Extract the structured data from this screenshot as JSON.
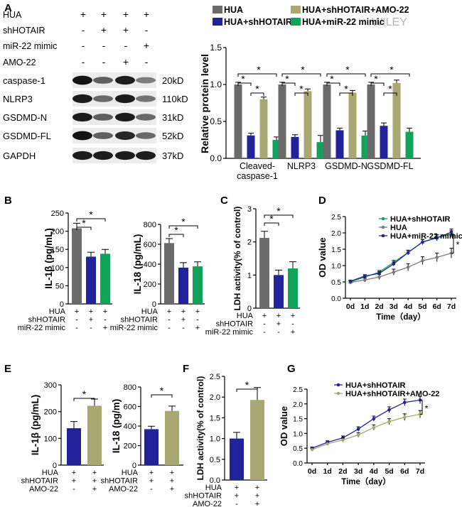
{
  "watermark": "WILEY",
  "panel_labels": [
    "A",
    "B",
    "C",
    "D",
    "E",
    "F",
    "G"
  ],
  "colors": {
    "HUA": "#6b6b6b",
    "HUA+shHOTAIR": "#22229a",
    "HUA+shHOTAIR+AMO-22": "#a9a872",
    "HUA+miR-22 mimic": "#12a35a",
    "line_HUA+shHOTAIR+AMO-22": "#a3ab66",
    "line_HUA": "#7a7a7a"
  },
  "blot": {
    "conditions": [
      {
        "label": "HUA",
        "marks": [
          "+",
          "+",
          "+",
          "+"
        ]
      },
      {
        "label": "shHOTAIR",
        "marks": [
          "-",
          "+",
          "+",
          "-"
        ]
      },
      {
        "label": "miR-22 mimic",
        "marks": [
          "-",
          "-",
          "-",
          "+"
        ]
      },
      {
        "label": "AMO-22",
        "marks": [
          "-",
          "-",
          "+",
          "-"
        ]
      }
    ],
    "bands": [
      {
        "name": "caspase-1",
        "size": "20kD",
        "intensity": [
          0.95,
          0.55,
          0.9,
          0.4
        ]
      },
      {
        "name": "NLRP3",
        "size": "110kD",
        "intensity": [
          0.9,
          0.5,
          0.9,
          0.45
        ]
      },
      {
        "name": "GSDMD-N",
        "size": "31kD",
        "intensity": [
          0.9,
          0.55,
          0.9,
          0.5
        ]
      },
      {
        "name": "GSDMD-FL",
        "size": "52kD",
        "intensity": [
          0.95,
          0.55,
          0.85,
          0.5
        ]
      },
      {
        "name": "GAPDH",
        "size": "37kD",
        "intensity": [
          0.9,
          0.9,
          0.9,
          0.9
        ]
      }
    ]
  },
  "chart_data": [
    {
      "panel": "A",
      "type": "bar",
      "ylabel": "Relative protein level",
      "xlabel": "",
      "ylim": [
        0,
        1.5
      ],
      "yticks": [
        0.0,
        0.5,
        1.0,
        1.5
      ],
      "yticklabels": [
        "0.0",
        "0.5",
        "1.0",
        "1.5"
      ],
      "categories": [
        "Cleaved-caspase-1",
        "NLRP3",
        "GSDMD-N",
        "GSDMD-FL"
      ],
      "category_lines": [
        [
          "Cleaved-",
          "caspase-1"
        ],
        [
          "NLRP3"
        ],
        [
          "GSDMD-N"
        ],
        [
          "GSDMD-FL"
        ]
      ],
      "legend": [
        "HUA",
        "HUA+shHOTAIR+AMO-22",
        "HUA+shHOTAIR",
        "HUA+miR-22 mimic"
      ],
      "legend_placement": "top",
      "series": [
        {
          "name": "HUA",
          "values": [
            1.0,
            1.0,
            1.0,
            1.0
          ],
          "errors": [
            0.03,
            0.03,
            0.03,
            0.03
          ]
        },
        {
          "name": "HUA+shHOTAIR",
          "values": [
            0.31,
            0.29,
            0.38,
            0.44
          ],
          "errors": [
            0.03,
            0.03,
            0.03,
            0.04
          ]
        },
        {
          "name": "HUA+shHOTAIR+AMO-22",
          "values": [
            0.8,
            0.91,
            0.89,
            1.02
          ],
          "errors": [
            0.03,
            0.03,
            0.03,
            0.04
          ]
        },
        {
          "name": "HUA+miR-22 mimic",
          "values": [
            0.25,
            0.22,
            0.31,
            0.36
          ],
          "errors": [
            0.04,
            0.09,
            0.06,
            0.05
          ]
        }
      ],
      "significance": "*"
    },
    {
      "panel": "B",
      "type": "bar",
      "ylabel": "IL-1β (pg/mL)",
      "ylim": [
        0,
        250
      ],
      "yticks": [
        0,
        50,
        100,
        150,
        200,
        250
      ],
      "categories": [
        "HUA",
        "HUA+shHOTAIR",
        "HUA+miR-22 mimic"
      ],
      "values": [
        208,
        130,
        138
      ],
      "errors": [
        14,
        12,
        12
      ],
      "condition_labels": [
        "HUA",
        "shHOTAIR",
        "miR-22 mimic"
      ],
      "condition_marks": [
        [
          "+",
          "+",
          "+"
        ],
        [
          "-",
          "+",
          "-"
        ],
        [
          "-",
          "-",
          "+"
        ]
      ],
      "significance": "*"
    },
    {
      "panel": "B",
      "type": "bar",
      "ylabel": "IL-18 (pg/mL)",
      "ylim": [
        0,
        800
      ],
      "yticks": [
        0,
        200,
        400,
        600,
        800
      ],
      "categories": [
        "HUA",
        "HUA+shHOTAIR",
        "HUA+miR-22 mimic"
      ],
      "values": [
        612,
        365,
        378
      ],
      "errors": [
        45,
        50,
        45
      ],
      "condition_labels": [
        "HUA",
        "shHOTAIR",
        "miR-22 mimic"
      ],
      "condition_marks": [
        [
          "+",
          "+",
          "+"
        ],
        [
          "-",
          "+",
          "-"
        ],
        [
          "-",
          "-",
          "+"
        ]
      ],
      "significance": "*"
    },
    {
      "panel": "C",
      "type": "bar",
      "ylabel": "LDH activity(% of control)",
      "ylim": [
        0,
        3
      ],
      "yticks": [
        0,
        1,
        2,
        3
      ],
      "categories": [
        "HUA",
        "HUA+shHOTAIR",
        "HUA+miR-22 mimic"
      ],
      "values": [
        2.12,
        1.0,
        1.2
      ],
      "errors": [
        0.2,
        0.15,
        0.2
      ],
      "condition_labels": [
        "HUA",
        "shHOTAIR",
        "miR-22 mimic"
      ],
      "condition_marks": [
        [
          "+",
          "+",
          "+"
        ],
        [
          "-",
          "+",
          "-"
        ],
        [
          "-",
          "-",
          "+"
        ]
      ],
      "significance": "*"
    },
    {
      "panel": "D",
      "type": "line",
      "ylabel": "OD value",
      "xlabel": "Time（day）",
      "x": [
        "0d",
        "1d",
        "2d",
        "3d",
        "4d",
        "5d",
        "6d",
        "7d"
      ],
      "ylim": [
        0,
        2.5
      ],
      "yticks": [
        0.0,
        0.5,
        1.0,
        1.5,
        2.0,
        2.5
      ],
      "yticklabels": [
        "0.0",
        "0.5",
        "1.0",
        "1.5",
        "2.0",
        "2.5"
      ],
      "legend_placement": "top-left",
      "series": [
        {
          "name": "HUA+shHOTAIR",
          "marker": "triangle",
          "values": [
            0.5,
            0.65,
            0.8,
            1.1,
            1.4,
            1.72,
            1.85,
            1.97
          ]
        },
        {
          "name": "HUA",
          "marker": "circle",
          "values": [
            0.48,
            0.56,
            0.65,
            0.8,
            0.95,
            1.15,
            1.25,
            1.38
          ]
        },
        {
          "name": "HUA+miR-22 mimic",
          "marker": "circle",
          "values": [
            0.52,
            0.68,
            0.76,
            1.05,
            1.4,
            1.72,
            1.85,
            2.02
          ]
        }
      ],
      "significance": "*"
    },
    {
      "panel": "E",
      "type": "bar",
      "ylabel": "IL-1β (pg/mL)",
      "ylim": [
        0,
        300
      ],
      "yticks": [
        0,
        100,
        200,
        300
      ],
      "categories": [
        "HUA+shHOTAIR",
        "HUA+shHOTAIR+AMO-22"
      ],
      "values": [
        138,
        222
      ],
      "errors": [
        25,
        25
      ],
      "condition_labels": [
        "HUA",
        "shHOTAIR",
        "AMO-22"
      ],
      "condition_marks": [
        [
          "+",
          "+"
        ],
        [
          "+",
          "+"
        ],
        [
          "-",
          "+"
        ]
      ],
      "significance": "*"
    },
    {
      "panel": "E",
      "type": "bar",
      "ylabel": "IL-18 (pg/m)",
      "ylim": [
        0,
        800
      ],
      "yticks": [
        0,
        200,
        400,
        600,
        800
      ],
      "categories": [
        "HUA+shHOTAIR",
        "HUA+shHOTAIR+AMO-22"
      ],
      "values": [
        368,
        555
      ],
      "errors": [
        30,
        50
      ],
      "condition_labels": [
        "HUA",
        "shHOTAIR",
        "AMO-22"
      ],
      "condition_marks": [
        [
          "+",
          "+"
        ],
        [
          "+",
          "+"
        ],
        [
          "-",
          "+"
        ]
      ],
      "significance": "*"
    },
    {
      "panel": "F",
      "type": "bar",
      "ylabel": "LDH activity(% of control)",
      "ylim": [
        0,
        2.5
      ],
      "yticks": [
        0.0,
        0.5,
        1.0,
        1.5,
        2.0,
        2.5
      ],
      "yticklabels": [
        "0.0",
        "0.5",
        "1.0",
        "1.5",
        "2.0",
        "2.5"
      ],
      "categories": [
        "HUA+shHOTAIR",
        "HUA+shHOTAIR+AMO-22"
      ],
      "values": [
        1.0,
        1.93
      ],
      "errors": [
        0.15,
        0.3
      ],
      "condition_labels": [
        "HUA",
        "shHOTAIR",
        "AMO-22"
      ],
      "condition_marks": [
        [
          "+",
          "+"
        ],
        [
          "+",
          "+"
        ],
        [
          "-",
          "+"
        ]
      ],
      "significance": "*"
    },
    {
      "panel": "G",
      "type": "line",
      "ylabel": "OD value",
      "xlabel": "Time（day）",
      "x": [
        "0d",
        "1d",
        "2d",
        "3d",
        "4d",
        "5d",
        "6d",
        "7d"
      ],
      "ylim": [
        0,
        2.5
      ],
      "yticks": [
        0.0,
        0.5,
        1.0,
        1.5,
        2.0,
        2.5
      ],
      "yticklabels": [
        "0.0",
        "0.5",
        "1.0",
        "1.5",
        "2.0",
        "2.5"
      ],
      "legend_placement": "top-left",
      "series": [
        {
          "name": "HUA+shHOTAIR",
          "values": [
            0.5,
            0.7,
            0.85,
            1.15,
            1.5,
            1.8,
            2.05,
            2.13
          ]
        },
        {
          "name": "HUA+shHOTAIR+AMO-22",
          "values": [
            0.45,
            0.65,
            0.78,
            0.95,
            1.2,
            1.4,
            1.55,
            1.65
          ]
        }
      ],
      "significance": "*"
    }
  ]
}
